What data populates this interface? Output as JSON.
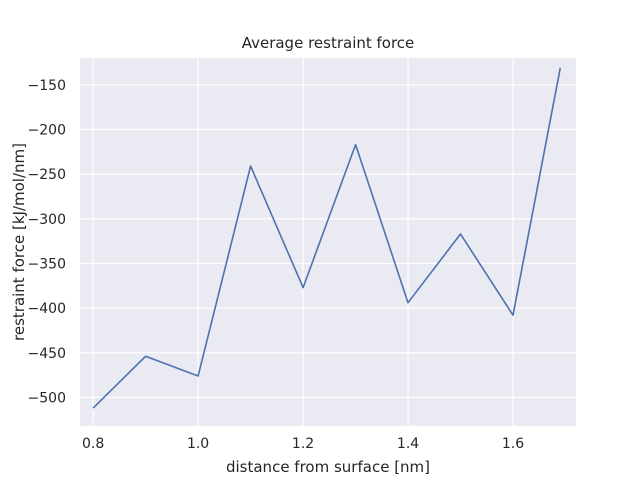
{
  "chart_data": {
    "type": "line",
    "title": "Average restraint force",
    "xlabel": "distance from surface [nm]",
    "ylabel": "restraint force [kJ/mol/nm]",
    "xlim": [
      0.775,
      1.72
    ],
    "ylim": [
      -532,
      -120
    ],
    "x_ticks": [
      0.8,
      1.0,
      1.2,
      1.4,
      1.6
    ],
    "x_tick_labels": [
      "0.8",
      "1.0",
      "1.2",
      "1.4",
      "1.6"
    ],
    "y_ticks": [
      -500,
      -450,
      -400,
      -350,
      -300,
      -250,
      -200,
      -150
    ],
    "y_tick_labels": [
      "−500",
      "−450",
      "−400",
      "−350",
      "−300",
      "−250",
      "−200",
      "−150"
    ],
    "grid": true,
    "background_color": "#eaeaf2",
    "grid_color": "#ffffff",
    "series": [
      {
        "color": "#4c72b0",
        "x": [
          0.8,
          0.9,
          1.0,
          1.1,
          1.2,
          1.3,
          1.4,
          1.5,
          1.6,
          1.69
        ],
        "y": [
          -512,
          -454,
          -476,
          -241,
          -377,
          -217,
          -394,
          -317,
          -408,
          -131
        ]
      }
    ]
  }
}
